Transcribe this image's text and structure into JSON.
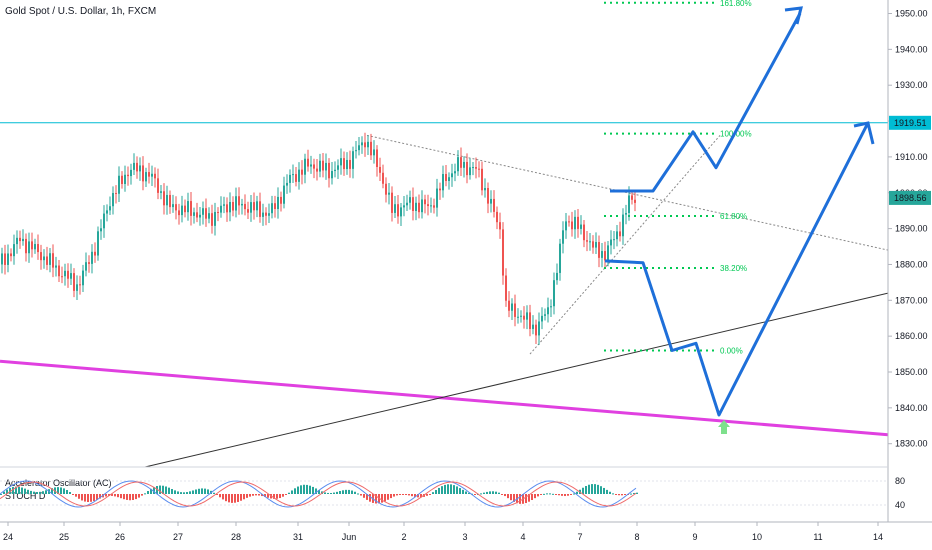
{
  "chart_data": {
    "type": "candlestick",
    "title": "Gold Spot / U.S. Dollar, 1h, FXCM",
    "y_axis": {
      "ticks": [
        1830,
        1840,
        1850,
        1860,
        1870,
        1880,
        1890,
        1900,
        1910,
        1920,
        1930,
        1940,
        1950
      ],
      "ylim": [
        1826,
        1953
      ]
    },
    "x_axis": {
      "ticks": [
        "24",
        "25",
        "26",
        "27",
        "28",
        "31",
        "Jun",
        "2",
        "3",
        "4",
        "7",
        "8",
        "9",
        "10",
        "11",
        "14"
      ]
    },
    "price_labels": [
      {
        "value": 1919.51,
        "label": "1919.51",
        "color": "#00bcd4"
      },
      {
        "value": 1898.56,
        "label": "1898.56",
        "color": "#26a69a"
      }
    ],
    "fib_levels": [
      {
        "level": "0.00%",
        "price": 1856
      },
      {
        "level": "38.20%",
        "price": 1879
      },
      {
        "level": "61.80%",
        "price": 1893.5
      },
      {
        "level": "100.00%",
        "price": 1916.5
      },
      {
        "level": "161.80%",
        "price": 1953
      }
    ],
    "indicator": {
      "labels": [
        "Accelerator Oscillator (AC)",
        "STOCH D"
      ],
      "ticks": [
        "80",
        "40"
      ]
    },
    "colors": {
      "up": "#26a69a",
      "down": "#ef5350",
      "projection": "#1e6fd9",
      "support": "#e040e0",
      "horizontal": "#00bcd4",
      "fib": "#00c853",
      "arrow": "#7ee08c"
    }
  }
}
